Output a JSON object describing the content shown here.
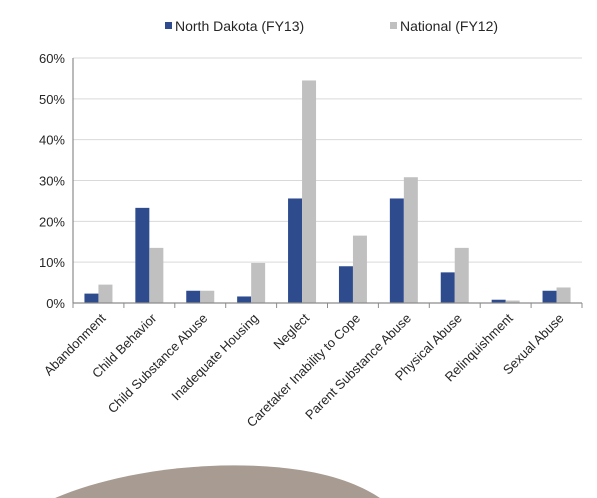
{
  "chart_data": {
    "type": "bar",
    "categories": [
      "Abandonment",
      "Child Behavior",
      "Child Substance Abuse",
      "Inadequate Housing",
      "Neglect",
      "Caretaker Inability to Cope",
      "Parent Substance Abuse",
      "Physical Abuse",
      "Relinquishment",
      "Sexual Abuse"
    ],
    "series": [
      {
        "name": "North Dakota (FY13)",
        "color": "#2e4b8e",
        "values": [
          2.3,
          23.3,
          3.0,
          1.6,
          25.6,
          9.0,
          25.6,
          7.5,
          0.8,
          3.0
        ]
      },
      {
        "name": "National (FY12)",
        "color": "#c0c0c0",
        "values": [
          4.5,
          13.5,
          3.0,
          9.8,
          54.5,
          16.5,
          30.8,
          13.5,
          0.6,
          3.8
        ]
      }
    ],
    "ylim": [
      0,
      60
    ],
    "yticks": [
      "0%",
      "10%",
      "20%",
      "30%",
      "40%",
      "50%",
      "60%"
    ],
    "grid": true,
    "legend_position": "top"
  },
  "colors": {
    "grid": "#d9d9d9",
    "axis": "#8c8c8c",
    "text": "#262626",
    "decor": "#8a7a6e"
  }
}
